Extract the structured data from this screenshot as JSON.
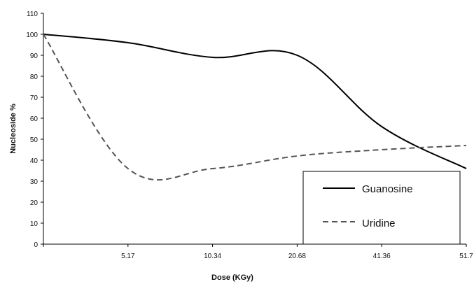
{
  "chart_data": {
    "type": "line",
    "xlabel": "Dose (KGy)",
    "ylabel": "Nucleoside %",
    "ylim": [
      0,
      110
    ],
    "yticks": [
      0,
      10,
      20,
      30,
      40,
      50,
      60,
      70,
      80,
      90,
      100,
      110
    ],
    "x": [
      "0",
      "5.17",
      "10.34",
      "20.68",
      "41.36",
      "51.7"
    ],
    "xtick_labels": [
      "5.17",
      "10.34",
      "20.68",
      "41.36",
      "51.7"
    ],
    "grid": false,
    "legend": "bottom-right",
    "series": [
      {
        "name": "Guanosine",
        "style": "solid",
        "color": "#000000",
        "values": [
          100,
          96,
          89,
          90,
          56,
          36
        ]
      },
      {
        "name": "Uridine",
        "style": "dashed",
        "color": "#555555",
        "values": [
          100,
          36,
          36,
          42,
          45,
          47
        ]
      }
    ]
  }
}
